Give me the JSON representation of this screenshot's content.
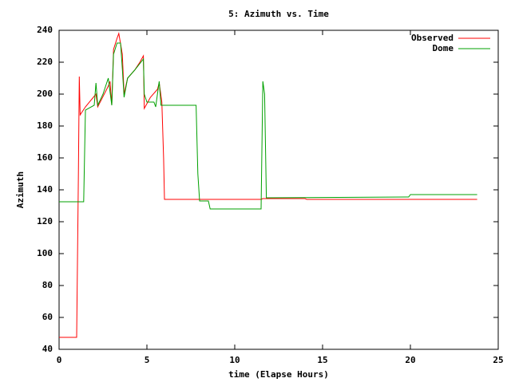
{
  "chart_data": {
    "type": "line",
    "title": "5: Azimuth vs. Time",
    "x_label": "time (Elapse Hours)",
    "y_label": "Azimuth",
    "xlim": [
      0,
      25
    ],
    "xticks": [
      0,
      5,
      10,
      15,
      20,
      25
    ],
    "ylim": [
      40,
      240
    ],
    "yticks": [
      40,
      60,
      80,
      100,
      120,
      140,
      160,
      180,
      200,
      220,
      240
    ],
    "legend": "top-right",
    "series": [
      {
        "name": "Observed",
        "color": "#ff0000",
        "x": [
          0,
          1.0,
          1.1,
          1.15,
          1.2,
          1.5,
          2.1,
          2.2,
          2.8,
          2.9,
          3.0,
          3.1,
          3.3,
          3.4,
          3.6,
          3.7,
          3.9,
          4.3,
          4.6,
          4.8,
          4.85,
          5.2,
          5.6,
          5.7,
          5.85,
          5.95,
          6.0,
          11.5,
          11.6,
          14.0,
          14.1,
          23.8
        ],
        "values": [
          47.5,
          47.5,
          150,
          211,
          187,
          192,
          200,
          192,
          205,
          208,
          193,
          228,
          235,
          238,
          225,
          200,
          210,
          215,
          220,
          224,
          191,
          198,
          203,
          207,
          195,
          160,
          134,
          134,
          134.5,
          134.5,
          134,
          134
        ]
      },
      {
        "name": "Dome",
        "color": "#00a000",
        "x": [
          0,
          1.4,
          1.5,
          2.0,
          2.1,
          2.2,
          2.5,
          2.8,
          3.0,
          3.1,
          3.3,
          3.5,
          3.6,
          3.7,
          3.9,
          4.3,
          4.8,
          4.85,
          5.0,
          5.4,
          5.5,
          5.7,
          5.8,
          7.8,
          7.9,
          8.0,
          8.5,
          8.6,
          11.5,
          11.6,
          11.7,
          11.8,
          19.9,
          20.0,
          23.8
        ],
        "values": [
          132.5,
          132.5,
          190,
          193,
          207,
          193,
          200,
          210,
          193,
          225,
          232,
          232,
          216,
          198,
          210,
          215,
          222,
          200,
          195,
          195,
          192,
          208,
          193,
          193,
          150,
          133,
          133,
          128,
          128,
          208,
          200,
          135,
          135.5,
          137,
          137
        ]
      }
    ]
  }
}
